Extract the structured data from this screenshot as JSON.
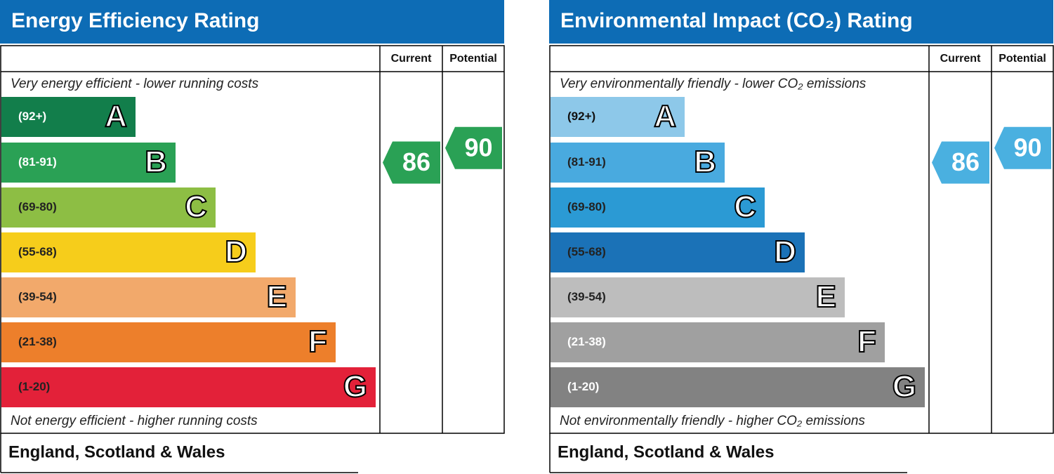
{
  "chart_data": [
    {
      "type": "epc",
      "title": "Energy Efficiency Rating",
      "top_note": "Very energy efficient - lower running costs",
      "bottom_note": "Not energy efficient - higher running costs",
      "footer": "England, Scotland & Wales",
      "bands": [
        {
          "range": "(92+)",
          "letter": "A",
          "color": "#127e4b",
          "text": "#ffffff"
        },
        {
          "range": "(81-91)",
          "letter": "B",
          "color": "#2aa155",
          "text": "#ffffff"
        },
        {
          "range": "(69-80)",
          "letter": "C",
          "color": "#8dbe44",
          "text": "#222222"
        },
        {
          "range": "(55-68)",
          "letter": "D",
          "color": "#f6cd1b",
          "text": "#222222"
        },
        {
          "range": "(39-54)",
          "letter": "E",
          "color": "#f2a96b",
          "text": "#222222"
        },
        {
          "range": "(21-38)",
          "letter": "F",
          "color": "#ed7f2b",
          "text": "#222222"
        },
        {
          "range": "(1-20)",
          "letter": "G",
          "color": "#e32139",
          "text": "#222222"
        }
      ],
      "series": [
        {
          "name": "Current",
          "value": 86,
          "color": "#2aa155"
        },
        {
          "name": "Potential",
          "value": 90,
          "color": "#2aa155"
        }
      ]
    },
    {
      "type": "epc",
      "title": "Environmental Impact (CO₂) Rating",
      "top_note": "Very environmentally friendly - lower CO₂ emissions",
      "bottom_note": "Not environmentally friendly - higher CO₂ emissions",
      "footer": "England, Scotland & Wales",
      "bands": [
        {
          "range": "(92+)",
          "letter": "A",
          "color": "#8dc8e9",
          "text": "#111111"
        },
        {
          "range": "(81-91)",
          "letter": "B",
          "color": "#49aadf",
          "text": "#222222"
        },
        {
          "range": "(69-80)",
          "letter": "C",
          "color": "#2b9ad4",
          "text": "#222222"
        },
        {
          "range": "(55-68)",
          "letter": "D",
          "color": "#1b72b7",
          "text": "#222222"
        },
        {
          "range": "(39-54)",
          "letter": "E",
          "color": "#bdbdbd",
          "text": "#222222"
        },
        {
          "range": "(21-38)",
          "letter": "F",
          "color": "#a0a0a0",
          "text": "#ffffff"
        },
        {
          "range": "(1-20)",
          "letter": "G",
          "color": "#828282",
          "text": "#ffffff"
        }
      ],
      "series": [
        {
          "name": "Current",
          "value": 86,
          "color": "#4ab0e0"
        },
        {
          "name": "Potential",
          "value": 90,
          "color": "#4ab0e0"
        }
      ]
    }
  ]
}
